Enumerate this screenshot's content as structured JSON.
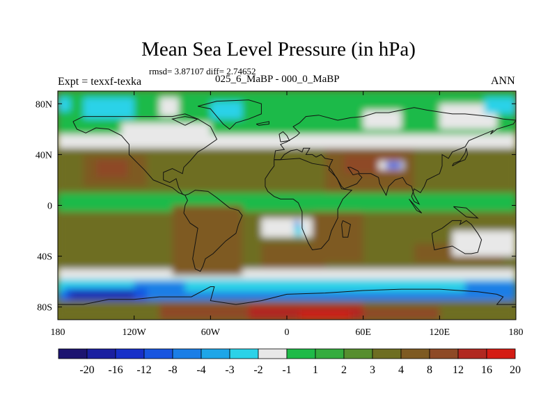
{
  "title": "Mean Sea Level Pressure (in hPa)",
  "stats_text": "rmsd= 3.87107 diff= 2.74652",
  "experiment_text": "Expt = texxf-texka",
  "period_text": "025_6_MaBP - 000_0_MaBP",
  "season": "ANN",
  "map": {
    "projection": "cylindrical equidistant",
    "lon_range": [
      -180,
      180
    ],
    "lat_range": [
      -90,
      90
    ],
    "x_ticks": [
      {
        "lon": -180,
        "label": "180"
      },
      {
        "lon": -120,
        "label": "120W"
      },
      {
        "lon": -60,
        "label": "60W"
      },
      {
        "lon": 0,
        "label": "0"
      },
      {
        "lon": 60,
        "label": "60E"
      },
      {
        "lon": 120,
        "label": "120E"
      },
      {
        "lon": 180,
        "label": "180"
      }
    ],
    "y_ticks": [
      {
        "lat": 80,
        "label": "80N"
      },
      {
        "lat": 40,
        "label": "40N"
      },
      {
        "lat": 0,
        "label": "0"
      },
      {
        "lat": -40,
        "label": "40S"
      },
      {
        "lat": -80,
        "label": "80S"
      }
    ]
  },
  "colorbar": {
    "boxes": [
      "#1c1470",
      "#1a1fa0",
      "#1730c8",
      "#1855e0",
      "#1a7ee6",
      "#1ea6e8",
      "#2bd2e8",
      "#e8e8e8",
      "#1eba48",
      "#34ac3e",
      "#568e2e",
      "#6e6e22",
      "#7e5a22",
      "#8e4a26",
      "#b12820",
      "#d41c14"
    ],
    "labels": [
      "-20",
      "-16",
      "-12",
      "-8",
      "-4",
      "-3",
      "-2",
      "-1",
      "1",
      "2",
      "3",
      "4",
      "8",
      "12",
      "16",
      "20"
    ]
  },
  "colors": {
    "deep_blue": "#1a1fa0",
    "blue": "#1855e0",
    "mid_blue": "#1a7ee6",
    "light_blue": "#2bd2e8",
    "white": "#e8e8e8",
    "green": "#1eba48",
    "mid_green": "#34ac3e",
    "olive": "#6e6e22",
    "brown": "#7e5a22",
    "dark_brown": "#8e4a26",
    "red": "#b12820",
    "bright_red": "#d41c14",
    "coast": "#111111"
  },
  "field_patches": [
    {
      "color": "olive",
      "lon": [
        -180,
        180
      ],
      "lat": [
        10,
        45
      ]
    },
    {
      "color": "olive",
      "lon": [
        -180,
        180
      ],
      "lat": [
        -50,
        -5
      ]
    },
    {
      "color": "green",
      "lon": [
        -180,
        180
      ],
      "lat": [
        -5,
        10
      ]
    },
    {
      "color": "white",
      "lon": [
        -180,
        180
      ],
      "lat": [
        45,
        56
      ]
    },
    {
      "color": "green",
      "lon": [
        -180,
        180
      ],
      "lat": [
        56,
        90
      ]
    },
    {
      "color": "white",
      "lon": [
        -180,
        180
      ],
      "lat": [
        -58,
        -50
      ]
    },
    {
      "color": "light_blue",
      "lon": [
        -180,
        180
      ],
      "lat": [
        -68,
        -58
      ]
    },
    {
      "color": "mid_blue",
      "lon": [
        -180,
        180
      ],
      "lat": [
        -75,
        -68
      ]
    },
    {
      "color": "olive",
      "lon": [
        -180,
        180
      ],
      "lat": [
        -90,
        -75
      ]
    },
    {
      "color": "brown",
      "lon": [
        -160,
        -110
      ],
      "lat": [
        15,
        40
      ]
    },
    {
      "color": "dark_brown",
      "lon": [
        -150,
        -125
      ],
      "lat": [
        22,
        36
      ]
    },
    {
      "color": "brown",
      "lon": [
        -90,
        -35
      ],
      "lat": [
        -55,
        0
      ]
    },
    {
      "color": "brown",
      "lon": [
        -20,
        30
      ],
      "lat": [
        -50,
        -30
      ]
    },
    {
      "color": "brown",
      "lon": [
        30,
        100
      ],
      "lat": [
        10,
        45
      ]
    },
    {
      "color": "dark_brown",
      "lon": [
        45,
        90
      ],
      "lat": [
        25,
        40
      ]
    },
    {
      "color": "brown",
      "lon": [
        20,
        60
      ],
      "lat": [
        -45,
        -5
      ]
    },
    {
      "color": "brown",
      "lon": [
        100,
        170
      ],
      "lat": [
        -45,
        -30
      ]
    },
    {
      "color": "white",
      "lon": [
        -130,
        -60
      ],
      "lat": [
        50,
        65
      ]
    },
    {
      "color": "white",
      "lon": [
        130,
        180
      ],
      "lat": [
        -40,
        -20
      ]
    },
    {
      "color": "white",
      "lon": [
        -20,
        20
      ],
      "lat": [
        -25,
        -10
      ]
    },
    {
      "color": "white",
      "lon": [
        -100,
        -85
      ],
      "lat": [
        70,
        85
      ]
    },
    {
      "color": "white",
      "lon": [
        120,
        165
      ],
      "lat": [
        60,
        80
      ]
    },
    {
      "color": "light_blue",
      "lon": [
        -160,
        -120
      ],
      "lat": [
        68,
        85
      ]
    },
    {
      "color": "light_blue",
      "lon": [
        -60,
        -35
      ],
      "lat": [
        68,
        82
      ]
    },
    {
      "color": "light_blue",
      "lon": [
        155,
        180
      ],
      "lat": [
        72,
        85
      ]
    },
    {
      "color": "light_blue",
      "lon": [
        -180,
        -170
      ],
      "lat": [
        74,
        85
      ]
    },
    {
      "color": "white",
      "lon": [
        60,
        90
      ],
      "lat": [
        60,
        75
      ]
    },
    {
      "color": "mid_blue",
      "lon": [
        -120,
        -80
      ],
      "lat": [
        -70,
        -60
      ]
    },
    {
      "color": "blue",
      "lon": [
        -175,
        -110
      ],
      "lat": [
        -75,
        -65
      ]
    },
    {
      "color": "deep_blue",
      "lon": [
        -170,
        -120
      ],
      "lat": [
        -73,
        -68
      ]
    },
    {
      "color": "mid_blue",
      "lon": [
        140,
        180
      ],
      "lat": [
        -75,
        -60
      ]
    },
    {
      "color": "dark_brown",
      "lon": [
        -100,
        -20
      ],
      "lat": [
        -90,
        -78
      ]
    },
    {
      "color": "red",
      "lon": [
        -30,
        60
      ],
      "lat": [
        -90,
        -78
      ]
    },
    {
      "color": "bright_red",
      "lon": [
        10,
        50
      ],
      "lat": [
        -90,
        -84
      ]
    },
    {
      "color": "dark_brown",
      "lon": [
        60,
        120
      ],
      "lat": [
        -90,
        -80
      ]
    },
    {
      "color": "white",
      "lon": [
        72,
        92
      ],
      "lat": [
        28,
        35
      ]
    },
    {
      "color": "blue",
      "lon": [
        78,
        90
      ],
      "lat": [
        29,
        34
      ]
    },
    {
      "color": "mid_blue",
      "lon": [
        6,
        10
      ],
      "lat": [
        -20,
        -12
      ]
    },
    {
      "color": "light_blue",
      "lon": [
        6,
        12
      ],
      "lat": [
        -24,
        -16
      ]
    }
  ],
  "coastlines": [
    [
      [
        -168,
        66
      ],
      [
        -160,
        70
      ],
      [
        -140,
        70
      ],
      [
        -125,
        70
      ],
      [
        -100,
        70
      ],
      [
        -90,
        70
      ],
      [
        -80,
        72
      ],
      [
        -70,
        68
      ],
      [
        -60,
        62
      ],
      [
        -55,
        52
      ],
      [
        -65,
        45
      ],
      [
        -70,
        42
      ],
      [
        -76,
        35
      ],
      [
        -81,
        30
      ],
      [
        -82,
        25
      ],
      [
        -90,
        29
      ],
      [
        -97,
        26
      ],
      [
        -97,
        20
      ],
      [
        -92,
        18
      ],
      [
        -87,
        21
      ],
      [
        -85,
        14
      ],
      [
        -82,
        9
      ],
      [
        -80,
        8
      ],
      [
        -85,
        10
      ],
      [
        -90,
        14
      ],
      [
        -95,
        16
      ],
      [
        -105,
        20
      ],
      [
        -112,
        28
      ],
      [
        -117,
        33
      ],
      [
        -124,
        40
      ],
      [
        -124,
        48
      ],
      [
        -130,
        55
      ],
      [
        -140,
        60
      ],
      [
        -150,
        61
      ],
      [
        -158,
        57
      ],
      [
        -165,
        60
      ],
      [
        -168,
        66
      ]
    ],
    [
      [
        -80,
        8
      ],
      [
        -77,
        9
      ],
      [
        -72,
        12
      ],
      [
        -62,
        11
      ],
      [
        -55,
        6
      ],
      [
        -50,
        2
      ],
      [
        -45,
        -2
      ],
      [
        -38,
        -4
      ],
      [
        -35,
        -8
      ],
      [
        -38,
        -15
      ],
      [
        -40,
        -22
      ],
      [
        -48,
        -28
      ],
      [
        -55,
        -35
      ],
      [
        -58,
        -38
      ],
      [
        -64,
        -42
      ],
      [
        -66,
        -48
      ],
      [
        -68,
        -52
      ],
      [
        -72,
        -50
      ],
      [
        -74,
        -42
      ],
      [
        -72,
        -30
      ],
      [
        -70,
        -18
      ],
      [
        -76,
        -14
      ],
      [
        -81,
        -6
      ],
      [
        -80,
        0
      ],
      [
        -78,
        4
      ],
      [
        -80,
        8
      ]
    ],
    [
      [
        -10,
        36
      ],
      [
        -5,
        36
      ],
      [
        10,
        37
      ],
      [
        20,
        33
      ],
      [
        32,
        31
      ],
      [
        35,
        28
      ],
      [
        40,
        20
      ],
      [
        43,
        13
      ],
      [
        51,
        12
      ],
      [
        44,
        5
      ],
      [
        40,
        -3
      ],
      [
        40,
        -10
      ],
      [
        35,
        -20
      ],
      [
        33,
        -27
      ],
      [
        27,
        -34
      ],
      [
        20,
        -35
      ],
      [
        17,
        -30
      ],
      [
        12,
        -18
      ],
      [
        12,
        -5
      ],
      [
        9,
        2
      ],
      [
        5,
        5
      ],
      [
        -5,
        5
      ],
      [
        -10,
        7
      ],
      [
        -15,
        11
      ],
      [
        -17,
        15
      ],
      [
        -17,
        21
      ],
      [
        -13,
        27
      ],
      [
        -10,
        31
      ],
      [
        -10,
        36
      ]
    ],
    [
      [
        -10,
        36
      ],
      [
        -9,
        43
      ],
      [
        -2,
        44
      ],
      [
        -5,
        48
      ],
      [
        0,
        50
      ],
      [
        5,
        53
      ],
      [
        8,
        55
      ],
      [
        10,
        57
      ],
      [
        5,
        62
      ],
      [
        10,
        65
      ],
      [
        15,
        70
      ],
      [
        25,
        71
      ],
      [
        40,
        67
      ],
      [
        50,
        69
      ],
      [
        60,
        70
      ],
      [
        70,
        73
      ],
      [
        80,
        73
      ],
      [
        100,
        77
      ],
      [
        110,
        75
      ],
      [
        130,
        72
      ],
      [
        140,
        72
      ],
      [
        160,
        70
      ],
      [
        170,
        68
      ],
      [
        180,
        67
      ],
      [
        178,
        64
      ],
      [
        165,
        60
      ],
      [
        160,
        56
      ],
      [
        162,
        59
      ],
      [
        155,
        56
      ],
      [
        143,
        51
      ],
      [
        140,
        46
      ],
      [
        130,
        42
      ],
      [
        127,
        37
      ],
      [
        122,
        40
      ],
      [
        122,
        31
      ],
      [
        120,
        25
      ],
      [
        110,
        20
      ],
      [
        108,
        15
      ],
      [
        105,
        10
      ],
      [
        100,
        13
      ],
      [
        98,
        7
      ],
      [
        100,
        3
      ],
      [
        104,
        1
      ],
      [
        100,
        8
      ],
      [
        98,
        15
      ],
      [
        94,
        17
      ],
      [
        91,
        22
      ],
      [
        85,
        20
      ],
      [
        80,
        15
      ],
      [
        78,
        8
      ],
      [
        73,
        17
      ],
      [
        72,
        22
      ],
      [
        66,
        25
      ],
      [
        57,
        25
      ],
      [
        56,
        27
      ],
      [
        50,
        30
      ],
      [
        48,
        30
      ],
      [
        52,
        24
      ],
      [
        56,
        25
      ],
      [
        59,
        22
      ],
      [
        55,
        17
      ],
      [
        45,
        13
      ],
      [
        43,
        15
      ],
      [
        39,
        22
      ],
      [
        33,
        28
      ],
      [
        34,
        32
      ],
      [
        36,
        36
      ],
      [
        30,
        37
      ],
      [
        27,
        40
      ],
      [
        23,
        38
      ],
      [
        20,
        40
      ],
      [
        15,
        40
      ],
      [
        18,
        45
      ],
      [
        13,
        45
      ],
      [
        12,
        42
      ],
      [
        8,
        44
      ],
      [
        3,
        43
      ],
      [
        -2,
        40
      ],
      [
        -5,
        36
      ],
      [
        -10,
        36
      ]
    ],
    [
      [
        114,
        -22
      ],
      [
        122,
        -18
      ],
      [
        130,
        -12
      ],
      [
        137,
        -12
      ],
      [
        136,
        -15
      ],
      [
        141,
        -12
      ],
      [
        145,
        -15
      ],
      [
        150,
        -22
      ],
      [
        153,
        -27
      ],
      [
        150,
        -37
      ],
      [
        145,
        -38
      ],
      [
        140,
        -38
      ],
      [
        135,
        -35
      ],
      [
        130,
        -32
      ],
      [
        116,
        -35
      ],
      [
        115,
        -30
      ],
      [
        114,
        -22
      ]
    ],
    [
      [
        -55,
        82
      ],
      [
        -30,
        83
      ],
      [
        -20,
        80
      ],
      [
        -20,
        72
      ],
      [
        -30,
        68
      ],
      [
        -40,
        65
      ],
      [
        -45,
        60
      ],
      [
        -50,
        64
      ],
      [
        -55,
        70
      ],
      [
        -60,
        76
      ],
      [
        -70,
        78
      ],
      [
        -55,
        82
      ]
    ],
    [
      [
        -180,
        -78
      ],
      [
        -160,
        -78
      ],
      [
        -140,
        -74
      ],
      [
        -120,
        -74
      ],
      [
        -100,
        -72
      ],
      [
        -75,
        -72
      ],
      [
        -60,
        -64
      ],
      [
        -57,
        -64
      ],
      [
        -60,
        -75
      ],
      [
        -40,
        -78
      ],
      [
        -20,
        -75
      ],
      [
        0,
        -70
      ],
      [
        30,
        -69
      ],
      [
        60,
        -67
      ],
      [
        90,
        -66
      ],
      [
        120,
        -66
      ],
      [
        150,
        -68
      ],
      [
        165,
        -70
      ],
      [
        170,
        -72
      ],
      [
        165,
        -78
      ],
      [
        180,
        -78
      ]
    ],
    [
      [
        44,
        -12
      ],
      [
        50,
        -15
      ],
      [
        48,
        -25
      ],
      [
        44,
        -25
      ],
      [
        43,
        -15
      ],
      [
        44,
        -12
      ]
    ],
    [
      [
        -5,
        50
      ],
      [
        2,
        51
      ],
      [
        0,
        55
      ],
      [
        -3,
        58
      ],
      [
        -6,
        56
      ],
      [
        -5,
        50
      ]
    ],
    [
      [
        130,
        31
      ],
      [
        135,
        34
      ],
      [
        140,
        36
      ],
      [
        142,
        40
      ],
      [
        141,
        45
      ],
      [
        140,
        41
      ],
      [
        136,
        35
      ],
      [
        131,
        33
      ],
      [
        130,
        31
      ]
    ],
    [
      [
        96,
        5
      ],
      [
        105,
        -5
      ],
      [
        106,
        -6
      ],
      [
        102,
        -4
      ],
      [
        96,
        5
      ]
    ],
    [
      [
        131,
        -1
      ],
      [
        141,
        -2
      ],
      [
        150,
        -10
      ],
      [
        141,
        -9
      ],
      [
        131,
        -1
      ]
    ],
    [
      [
        -24,
        64
      ],
      [
        -14,
        66
      ],
      [
        -14,
        64
      ],
      [
        -22,
        63
      ],
      [
        -24,
        64
      ]
    ],
    [
      [
        -80,
        63
      ],
      [
        -70,
        68
      ],
      [
        -80,
        70
      ],
      [
        -90,
        68
      ],
      [
        -80,
        63
      ]
    ]
  ]
}
